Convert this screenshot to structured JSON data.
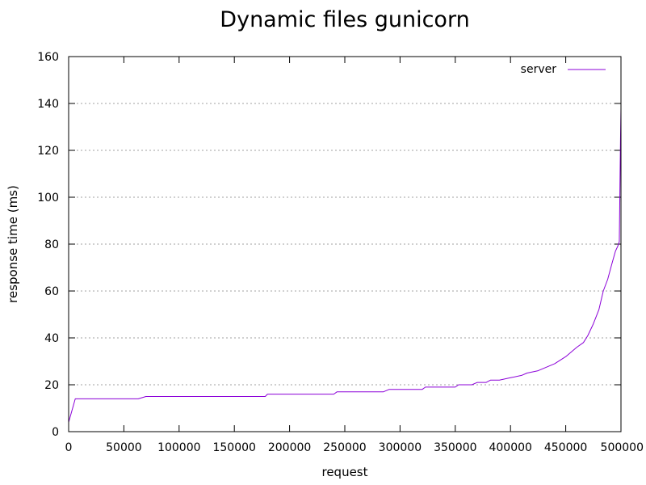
{
  "chart_data": {
    "type": "line",
    "title": "Dynamic files gunicorn",
    "xlabel": "request",
    "ylabel": "response time (ms)",
    "xlim": [
      0,
      500000
    ],
    "ylim": [
      0,
      160
    ],
    "x_ticks": [
      0,
      50000,
      100000,
      150000,
      200000,
      250000,
      300000,
      350000,
      400000,
      450000,
      500000
    ],
    "y_ticks": [
      0,
      20,
      40,
      60,
      80,
      100,
      120,
      140,
      160
    ],
    "x_tick_labels": [
      "0",
      "50000",
      "100000",
      "150000",
      "200000",
      "250000",
      "300000",
      "350000",
      "400000",
      "450000",
      "500000"
    ],
    "y_tick_labels": [
      "0",
      "20",
      "40",
      "60",
      "80",
      "100",
      "120",
      "140",
      "160"
    ],
    "grid": "horizontal-dashed",
    "legend": {
      "position": "top-right"
    },
    "series": [
      {
        "name": "server",
        "color": "#8b00d8",
        "x": [
          0,
          6000,
          63000,
          70000,
          178000,
          180000,
          240000,
          243000,
          285000,
          290000,
          320000,
          323000,
          350000,
          353000,
          365000,
          370000,
          378000,
          382000,
          390000,
          400000,
          410000,
          415000,
          425000,
          430000,
          440000,
          450000,
          460000,
          466000,
          470000,
          475000,
          480000,
          484000,
          488000,
          492000,
          495000,
          497000,
          498500,
          499200,
          499600,
          500000
        ],
        "y": [
          4,
          14,
          14,
          15,
          15,
          16,
          16,
          17,
          17,
          18,
          18,
          19,
          19,
          20,
          20,
          21,
          21,
          22,
          22,
          23,
          24,
          25,
          26,
          27,
          29,
          32,
          36,
          38,
          41,
          46,
          52,
          60,
          65,
          72,
          77,
          79,
          81,
          110,
          125,
          138
        ]
      }
    ]
  }
}
